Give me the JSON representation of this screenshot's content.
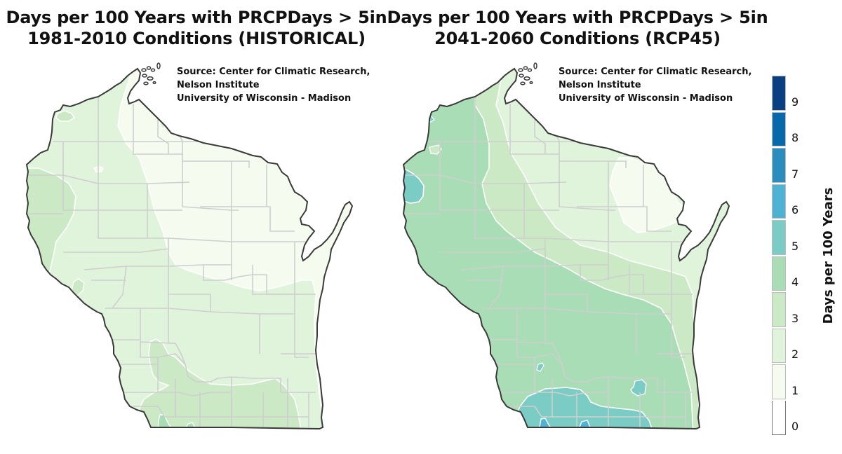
{
  "maps": [
    {
      "title_line1": "Days per 100 Years with PRCPDays > 5in",
      "title_line2": "1981-2010 Conditions (HISTORICAL)",
      "source_line1": "Source:  Center for Climatic Research,",
      "source_line2": "Nelson Institute",
      "source_line3": "University of Wisconsin - Madison"
    },
    {
      "title_line1": "Days per 100 Years with PRCPDays > 5in",
      "title_line2": "2041-2060 Conditions (RCP45)",
      "source_line1": "Source:  Center for Climatic Research,",
      "source_line2": "Nelson Institute",
      "source_line3": "University of Wisconsin - Madison"
    }
  ],
  "colorbar": {
    "label": "Days per 100 Years",
    "ticks": [
      "0",
      "1",
      "2",
      "3",
      "4",
      "5",
      "6",
      "7",
      "8",
      "9"
    ],
    "colors": [
      "#ffffff",
      "#f5fbef",
      "#e0f3db",
      "#cbe9c5",
      "#a8ddb5",
      "#7bccc4",
      "#4eb3d3",
      "#2b8cbe",
      "#0868ac",
      "#084081"
    ]
  },
  "chart_data": {
    "type": "heatmap",
    "title": "Days per 100 Years with PRCPDays > 5in",
    "panels": [
      {
        "subtitle": "1981-2010 Conditions (HISTORICAL)",
        "region": "Wisconsin",
        "value_range_observed": [
          1,
          4
        ],
        "description": "Mostly 1-2 across north-central and east; 2-3 in west and south; 3-4 small pockets in far southwest/south-central"
      },
      {
        "subtitle": "2041-2060 Conditions (RCP45)",
        "region": "Wisconsin",
        "value_range_observed": [
          1,
          6
        ],
        "description": "1-2 in northeast; 2-3 central band; 3-4 across west and southwest; 4-5 in far west-central and south-central; 5-6 small pockets near southern border"
      }
    ],
    "colorbar": {
      "label": "Days per 100 Years",
      "range": [
        0,
        9
      ],
      "bins": [
        [
          0,
          1
        ],
        [
          1,
          2
        ],
        [
          2,
          3
        ],
        [
          3,
          4
        ],
        [
          4,
          5
        ],
        [
          5,
          6
        ],
        [
          6,
          7
        ],
        [
          7,
          8
        ],
        [
          8,
          9
        ],
        [
          9,
          10
        ]
      ]
    },
    "source": "Center for Climatic Research, Nelson Institute, University of Wisconsin - Madison"
  }
}
